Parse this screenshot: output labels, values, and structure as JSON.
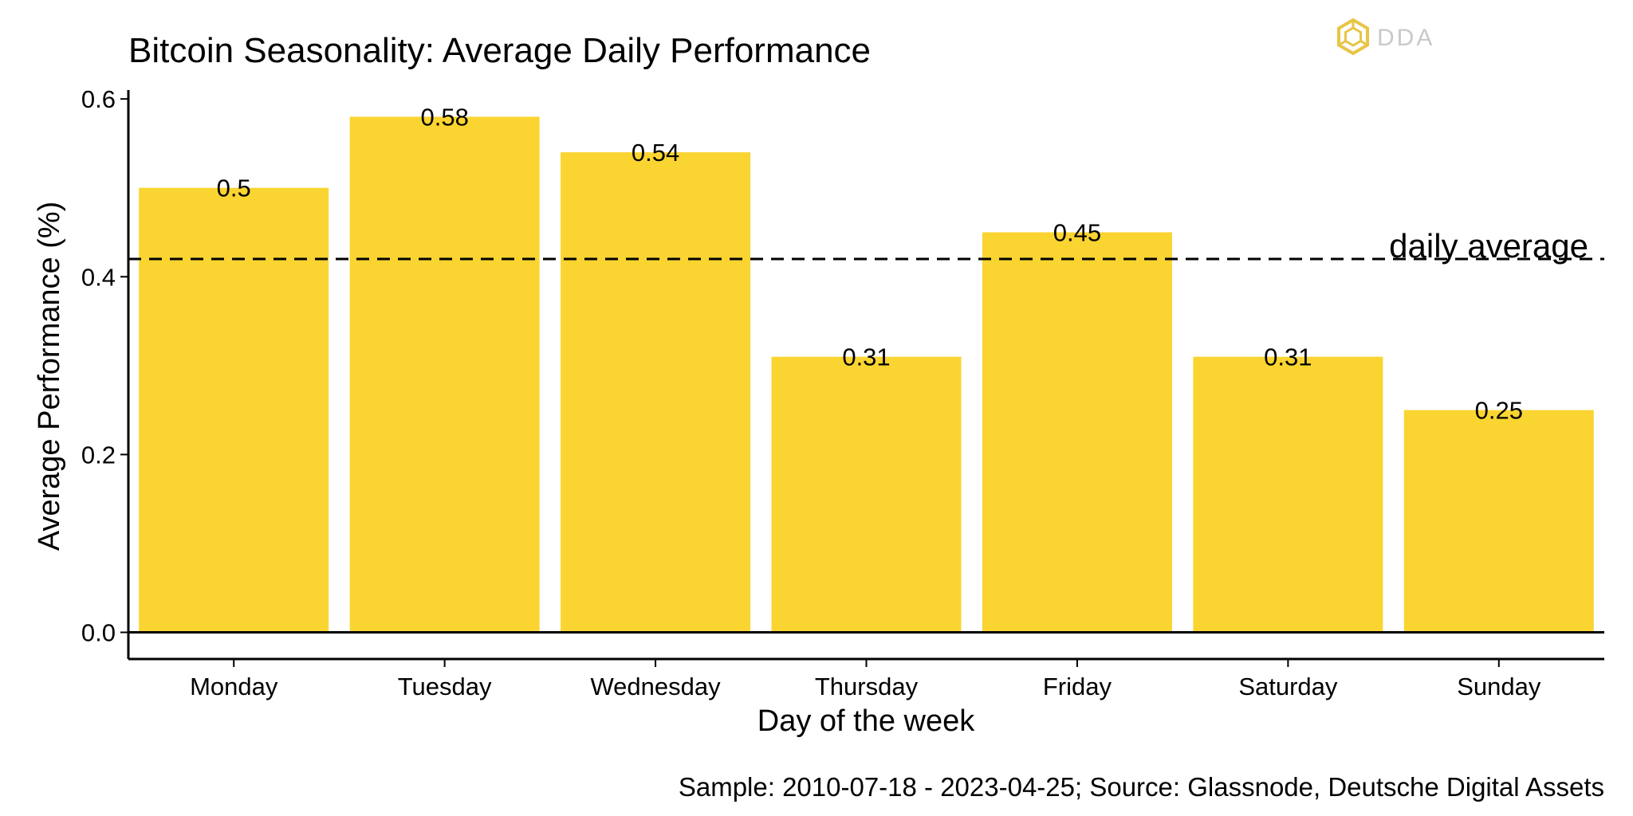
{
  "chart_data": {
    "type": "bar",
    "title": "Bitcoin Seasonality: Average Daily Performance",
    "xlabel": "Day of the week",
    "ylabel": "Average Performance (%)",
    "categories": [
      "Monday",
      "Tuesday",
      "Wednesday",
      "Thursday",
      "Friday",
      "Saturday",
      "Sunday"
    ],
    "values": [
      0.5,
      0.58,
      0.54,
      0.31,
      0.45,
      0.31,
      0.25
    ],
    "data_labels": [
      "0.5",
      "0.58",
      "0.54",
      "0.31",
      "0.45",
      "0.31",
      "0.25"
    ],
    "ylim": [
      -0.03,
      0.61
    ],
    "yticks": [
      0.0,
      0.2,
      0.4,
      0.6
    ],
    "ytick_labels": [
      "0.0",
      "0.2",
      "0.4",
      "0.6"
    ],
    "reference_line": {
      "value": 0.42,
      "label": "daily average",
      "style": "dashed"
    },
    "grid": false,
    "legend": "none",
    "bar_color": "#fad431",
    "source_note": "Sample: 2010-07-18 - 2023-04-25; Source: Glassnode, Deutsche Digital Assets"
  },
  "logo": {
    "text": "DDA",
    "color": "#e8c545",
    "icon": "dda-logo-icon"
  }
}
